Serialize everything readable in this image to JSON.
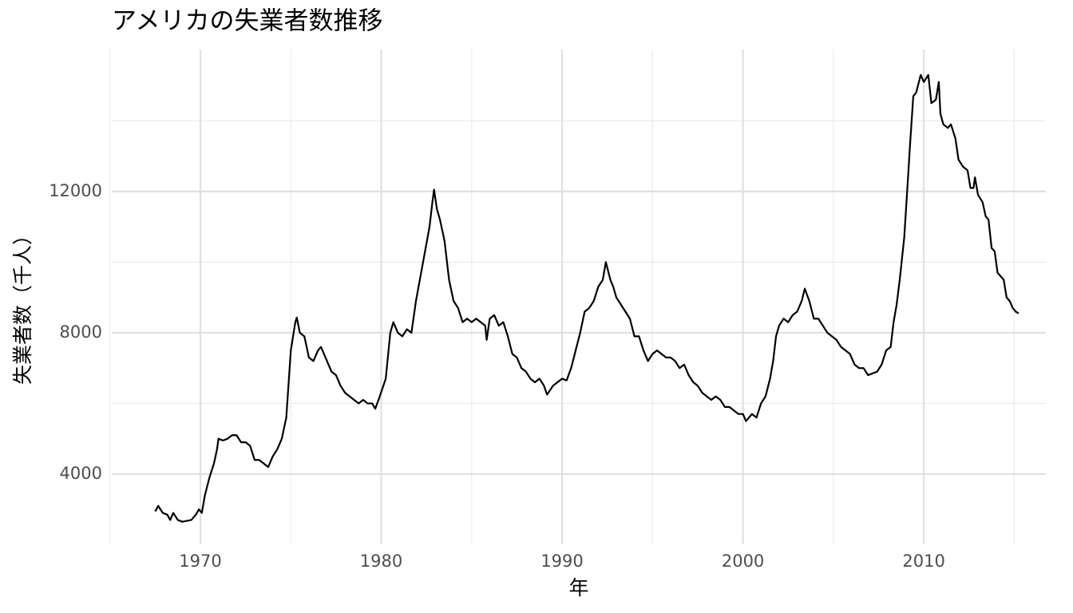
{
  "chart_data": {
    "type": "line",
    "title": "アメリカの失業者数推移",
    "xlabel": "年",
    "ylabel": "失業者数（千人）",
    "color": "#000000",
    "grid": true,
    "xlim": [
      1965.1,
      2016.75
    ],
    "ylim": [
      2010,
      16020
    ],
    "xticks": [
      1970,
      1980,
      1990,
      2000,
      2010
    ],
    "yticks": [
      4000,
      8000,
      12000
    ],
    "minor_xticks": [
      1965,
      1975,
      1985,
      1995,
      2005,
      2015
    ],
    "minor_yticks": [
      6000,
      10000,
      14000
    ],
    "x": [
      1967.5,
      1967.67,
      1967.92,
      1968.17,
      1968.33,
      1968.5,
      1968.75,
      1969.0,
      1969.5,
      1969.75,
      1969.92,
      1970.08,
      1970.25,
      1970.5,
      1970.75,
      1970.92,
      1971.0,
      1971.25,
      1971.5,
      1971.75,
      1972.0,
      1972.25,
      1972.5,
      1972.75,
      1973.0,
      1973.25,
      1973.5,
      1973.75,
      1974.0,
      1974.25,
      1974.5,
      1974.75,
      1975.0,
      1975.25,
      1975.33,
      1975.5,
      1975.75,
      1976.0,
      1976.25,
      1976.5,
      1976.67,
      1977.0,
      1977.25,
      1977.5,
      1977.75,
      1978.0,
      1978.25,
      1978.5,
      1978.75,
      1979.0,
      1979.25,
      1979.5,
      1979.67,
      1979.92,
      1980.25,
      1980.5,
      1980.67,
      1980.92,
      1981.17,
      1981.42,
      1981.67,
      1981.92,
      1982.17,
      1982.42,
      1982.67,
      1982.83,
      1982.92,
      1983.08,
      1983.25,
      1983.5,
      1983.75,
      1984.0,
      1984.25,
      1984.5,
      1984.75,
      1985.0,
      1985.25,
      1985.5,
      1985.75,
      1985.83,
      1986.0,
      1986.25,
      1986.5,
      1986.75,
      1987.0,
      1987.25,
      1987.5,
      1987.75,
      1988.0,
      1988.25,
      1988.5,
      1988.75,
      1989.0,
      1989.17,
      1989.5,
      1989.75,
      1990.0,
      1990.25,
      1990.5,
      1990.75,
      1991.0,
      1991.25,
      1991.5,
      1991.75,
      1992.0,
      1992.25,
      1992.42,
      1992.67,
      1992.83,
      1993.0,
      1993.25,
      1993.5,
      1993.75,
      1994.0,
      1994.25,
      1994.5,
      1994.75,
      1995.0,
      1995.25,
      1995.5,
      1995.75,
      1996.0,
      1996.25,
      1996.5,
      1996.75,
      1997.0,
      1997.25,
      1997.5,
      1997.75,
      1998.0,
      1998.25,
      1998.5,
      1998.75,
      1999.0,
      1999.25,
      1999.5,
      1999.75,
      2000.0,
      2000.17,
      2000.5,
      2000.75,
      2001.0,
      2001.25,
      2001.5,
      2001.67,
      2001.83,
      2002.0,
      2002.25,
      2002.5,
      2002.75,
      2003.0,
      2003.25,
      2003.42,
      2003.67,
      2003.92,
      2004.17,
      2004.42,
      2004.67,
      2004.92,
      2005.17,
      2005.42,
      2005.67,
      2005.92,
      2006.17,
      2006.42,
      2006.67,
      2006.92,
      2007.17,
      2007.42,
      2007.67,
      2007.92,
      2008.17,
      2008.33,
      2008.5,
      2008.67,
      2008.92,
      2009.08,
      2009.25,
      2009.42,
      2009.58,
      2009.83,
      2010.0,
      2010.25,
      2010.42,
      2010.67,
      2010.83,
      2010.92,
      2011.08,
      2011.33,
      2011.5,
      2011.75,
      2011.92,
      2012.17,
      2012.42,
      2012.58,
      2012.75,
      2012.83,
      2013.0,
      2013.25,
      2013.42,
      2013.58,
      2013.75,
      2013.92,
      2014.08,
      2014.25,
      2014.42,
      2014.58,
      2014.75,
      2014.92,
      2015.08,
      2015.25
    ],
    "values": [
      2944,
      3100,
      2900,
      2850,
      2700,
      2900,
      2700,
      2650,
      2700,
      2850,
      3000,
      2900,
      3400,
      3900,
      4300,
      4700,
      5000,
      4950,
      5000,
      5100,
      5100,
      4900,
      4900,
      4800,
      4400,
      4400,
      4300,
      4200,
      4500,
      4700,
      5000,
      5600,
      7500,
      8300,
      8430,
      8000,
      7900,
      7300,
      7200,
      7500,
      7600,
      7200,
      6900,
      6800,
      6500,
      6300,
      6200,
      6100,
      6000,
      6100,
      6000,
      6000,
      5850,
      6200,
      6700,
      8000,
      8300,
      8000,
      7900,
      8100,
      8000,
      8900,
      9600,
      10300,
      11000,
      11700,
      12051,
      11500,
      11200,
      10600,
      9500,
      8900,
      8700,
      8300,
      8400,
      8300,
      8400,
      8300,
      8200,
      7800,
      8400,
      8500,
      8200,
      8300,
      7900,
      7400,
      7300,
      7000,
      6900,
      6700,
      6600,
      6700,
      6500,
      6250,
      6500,
      6600,
      6700,
      6650,
      7000,
      7500,
      8000,
      8600,
      8700,
      8900,
      9300,
      9500,
      10000,
      9500,
      9300,
      9000,
      8800,
      8600,
      8400,
      7900,
      7900,
      7500,
      7200,
      7400,
      7500,
      7400,
      7300,
      7300,
      7200,
      7000,
      7100,
      6800,
      6600,
      6500,
      6300,
      6200,
      6100,
      6200,
      6100,
      5900,
      5900,
      5800,
      5700,
      5700,
      5500,
      5700,
      5600,
      6000,
      6200,
      6700,
      7200,
      7900,
      8200,
      8400,
      8300,
      8500,
      8600,
      8900,
      9250,
      8900,
      8400,
      8400,
      8200,
      8000,
      7900,
      7800,
      7600,
      7500,
      7400,
      7100,
      7000,
      7000,
      6800,
      6850,
      6900,
      7100,
      7500,
      7600,
      8300,
      8800,
      9500,
      10700,
      12000,
      13400,
      14700,
      14800,
      15300,
      15100,
      15300,
      14500,
      14600,
      15100,
      14200,
      13900,
      13800,
      13900,
      13500,
      12900,
      12700,
      12600,
      12100,
      12100,
      12400,
      11900,
      11700,
      11300,
      11200,
      10400,
      10300,
      9700,
      9600,
      9500,
      9000,
      8900,
      8700,
      8600,
      8549
    ]
  }
}
